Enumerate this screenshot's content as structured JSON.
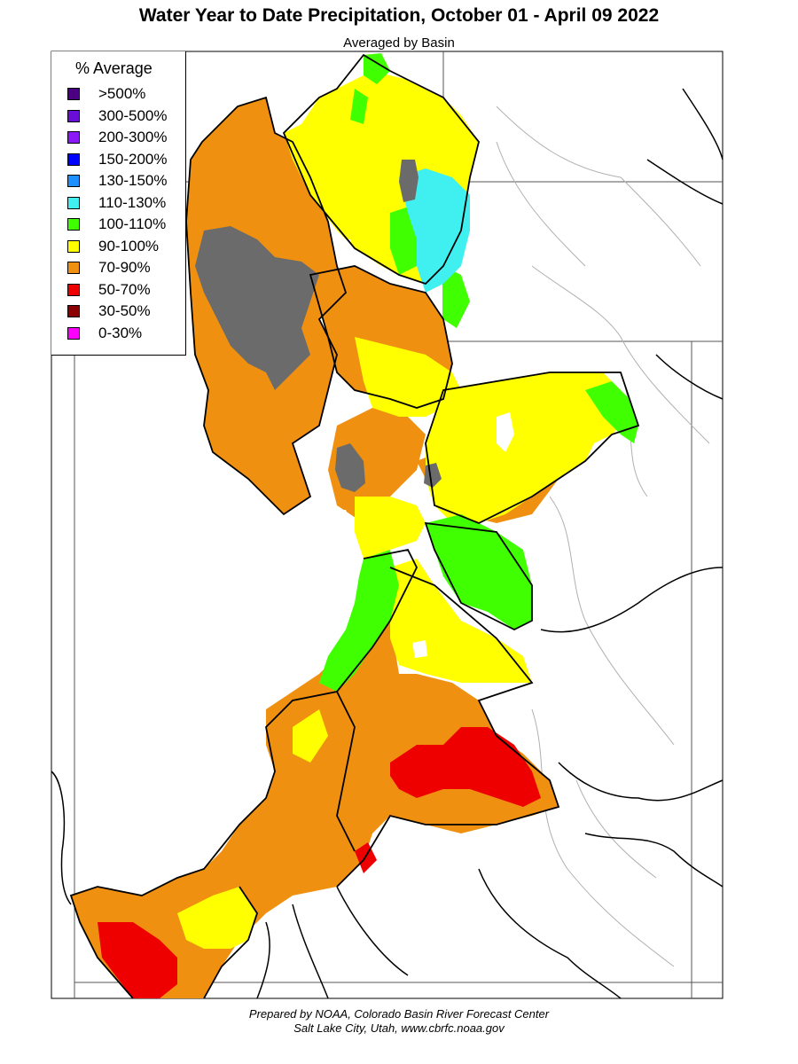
{
  "title": "Water Year to Date Precipitation, October 01  - April 09 2022",
  "subtitle": "Averaged by Basin",
  "legend": {
    "title": "% Average",
    "items": [
      {
        "label": ">500%",
        "color": "#4b0082"
      },
      {
        "label": "300-500%",
        "color": "#6a0dd6"
      },
      {
        "label": "200-300%",
        "color": "#8b18f5"
      },
      {
        "label": "150-200%",
        "color": "#0000ff"
      },
      {
        "label": "130-150%",
        "color": "#1e90ff"
      },
      {
        "label": "110-130%",
        "color": "#40f0f0"
      },
      {
        "label": "100-110%",
        "color": "#40ff00"
      },
      {
        "label": "90-100%",
        "color": "#ffff00"
      },
      {
        "label": "70-90%",
        "color": "#f09010"
      },
      {
        "label": "50-70%",
        "color": "#ee0000"
      },
      {
        "label": "30-50%",
        "color": "#8b0000"
      },
      {
        "label": "0-30%",
        "color": "#ff00ff"
      }
    ]
  },
  "credit": {
    "line1": "Prepared by NOAA, Colorado Basin River Forecast Center",
    "line2": "Salt Lake City, Utah, www.cbrfc.noaa.gov"
  }
}
